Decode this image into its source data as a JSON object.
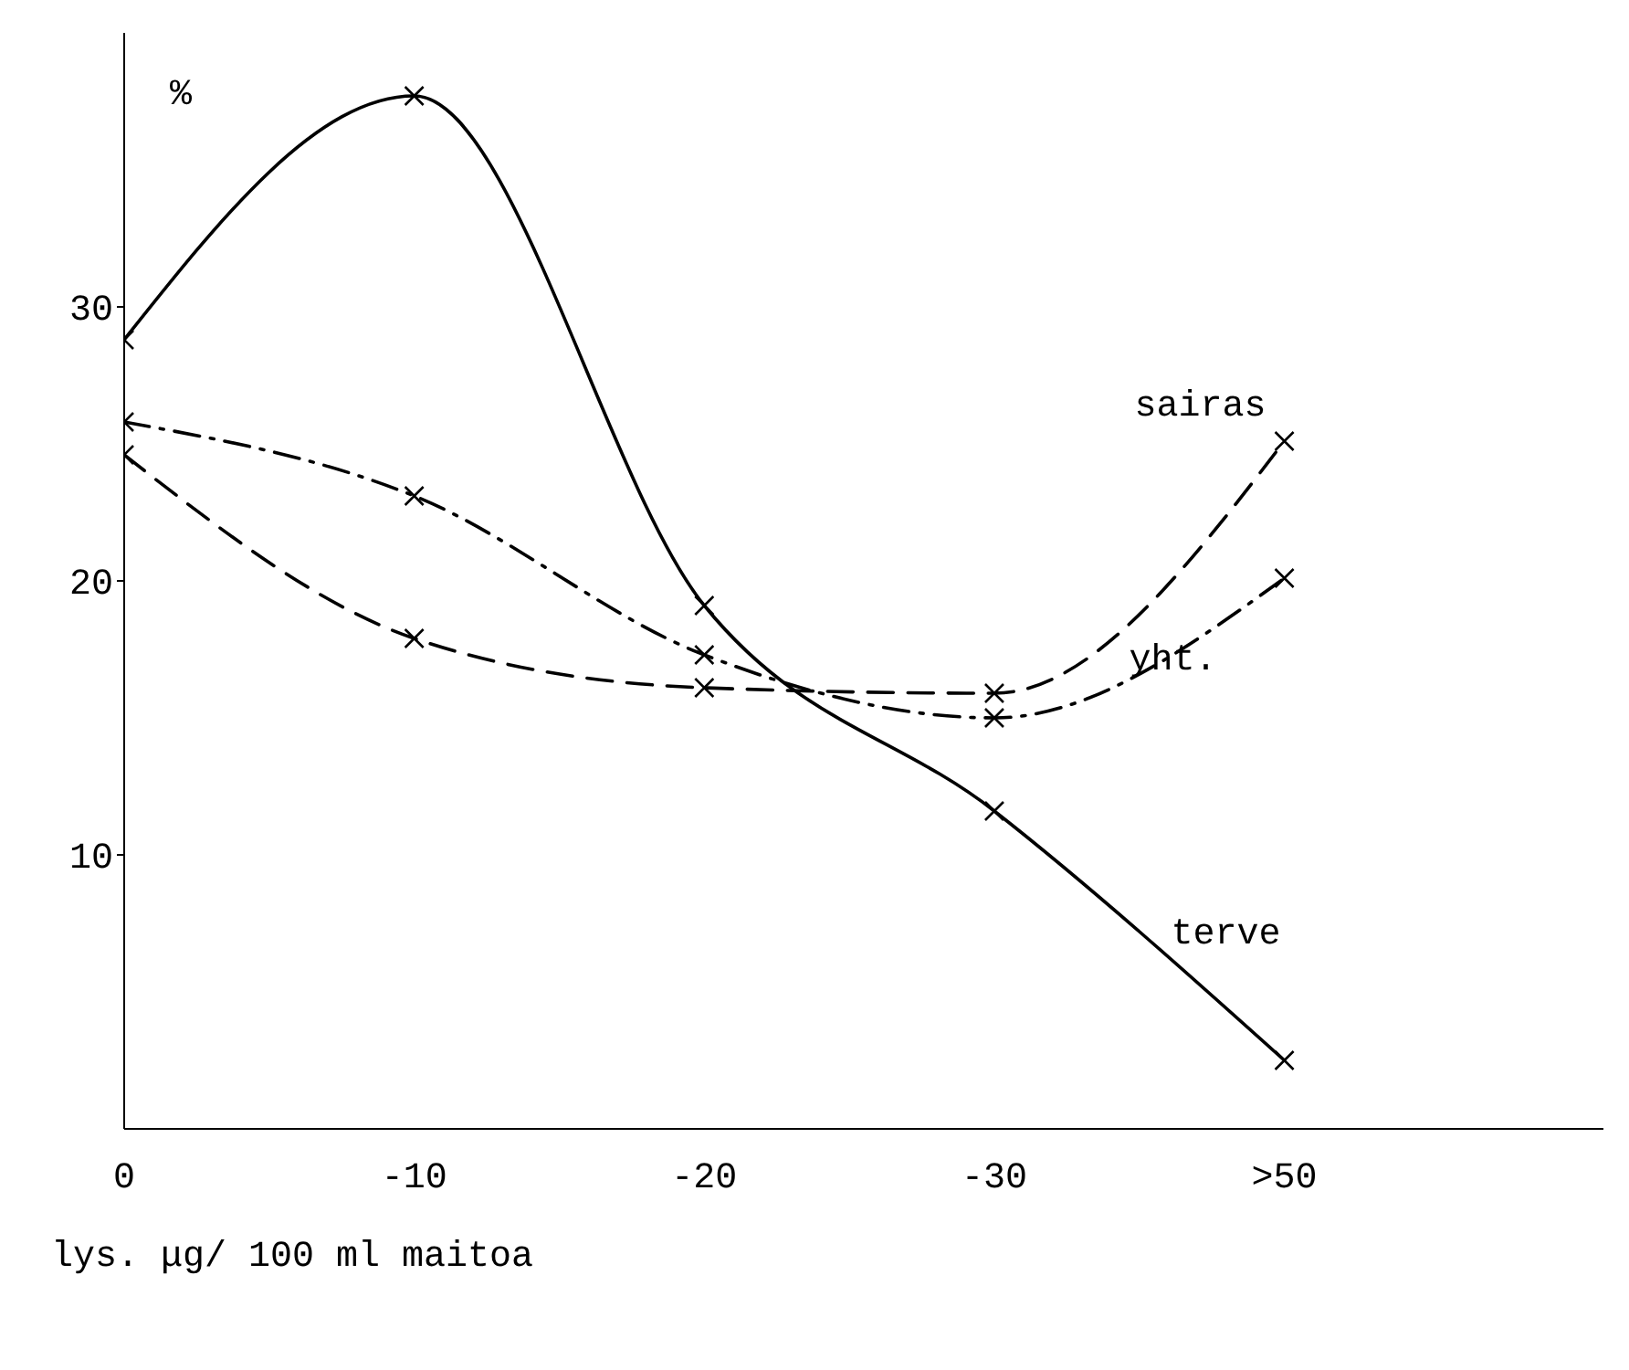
{
  "chart_data": {
    "type": "line",
    "xlabel": "lys. μg/ 100 ml maitoa",
    "ylabel": "%",
    "categories": [
      "0",
      "-10",
      "-20",
      "-30",
      ">50"
    ],
    "ylim": [
      0,
      40
    ],
    "yticks": [
      10,
      20,
      30
    ],
    "marker": "cross",
    "series": [
      {
        "name": "terve",
        "color": "#000000",
        "line_style": "solid",
        "values": [
          28.8,
          37.7,
          19.1,
          11.6,
          2.5
        ]
      },
      {
        "name": "sairas",
        "color": "#000000",
        "line_style": "dashed",
        "values": [
          24.6,
          17.9,
          16.1,
          15.9,
          25.1
        ]
      },
      {
        "name": "yht.",
        "color": "#000000",
        "line_style": "dashdot",
        "values": [
          25.8,
          23.1,
          17.3,
          15.0,
          20.1
        ]
      }
    ]
  }
}
